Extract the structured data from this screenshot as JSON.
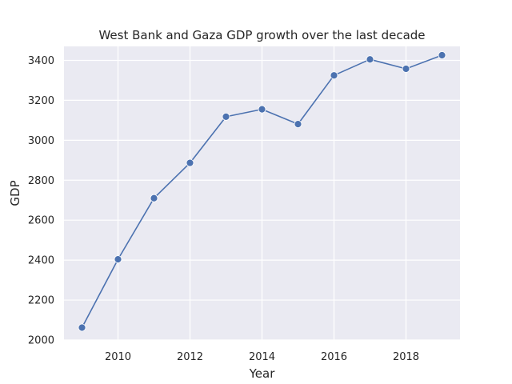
{
  "chart_data": {
    "type": "line",
    "title": "West Bank and Gaza GDP growth over the last decade",
    "xlabel": "Year",
    "ylabel": "GDP",
    "x": [
      2009,
      2010,
      2011,
      2012,
      2013,
      2014,
      2015,
      2016,
      2017,
      2018,
      2019
    ],
    "series": [
      {
        "values": [
          2062,
          2404,
          2710,
          2887,
          3118,
          3155,
          3081,
          3325,
          3405,
          3358,
          3426
        ]
      }
    ],
    "xlim": [
      2008.5,
      2019.5
    ],
    "ylim": [
      2000,
      3470
    ],
    "xticks": [
      2010,
      2012,
      2014,
      2016,
      2018
    ],
    "yticks": [
      2000,
      2200,
      2400,
      2600,
      2800,
      3000,
      3200,
      3400
    ],
    "grid": true,
    "colors": {
      "background": "#eaeaf2",
      "grid": "#ffffff",
      "line": "#4c72b0",
      "marker_edge": "#ffffff"
    }
  }
}
